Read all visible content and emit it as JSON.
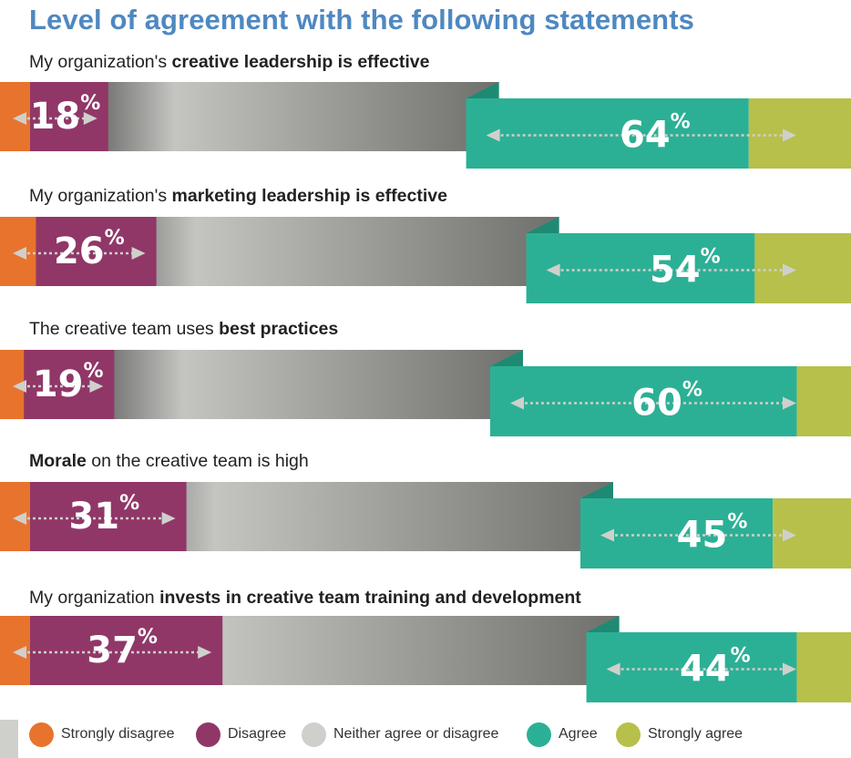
{
  "chart_data": {
    "type": "diverging_stacked_bar",
    "title": "Level of agreement with the following statements",
    "legend": {
      "position": "bottom",
      "entries": [
        {
          "key": "strongly_disagree",
          "label": "Strongly disagree",
          "color": "#e8732c"
        },
        {
          "key": "disagree",
          "label": "Disagree",
          "color": "#903768"
        },
        {
          "key": "neither",
          "label": "Neither agree or disagree",
          "color": "#cfd0cc"
        },
        {
          "key": "agree",
          "label": "Agree",
          "color": "#2cb095"
        },
        {
          "key": "strongly_agree",
          "label": "Strongly agree",
          "color": "#b6c04a"
        }
      ]
    },
    "statements": [
      {
        "parts": [
          {
            "text": "My organization's ",
            "bold": false
          },
          {
            "text": "creative leadership is effective",
            "bold": true
          }
        ],
        "disagree_total": 18,
        "agree_total": 64,
        "disagree_label": "18",
        "agree_label": "64",
        "strongly_disagree": 5,
        "strongly_agree": 17
      },
      {
        "parts": [
          {
            "text": "My organization's ",
            "bold": false
          },
          {
            "text": "marketing leadership is effective",
            "bold": true
          }
        ],
        "disagree_total": 26,
        "agree_total": 54,
        "disagree_label": "26",
        "agree_label": "54",
        "strongly_disagree": 6,
        "strongly_agree": 16
      },
      {
        "parts": [
          {
            "text": "The creative team uses ",
            "bold": false
          },
          {
            "text": "best practices",
            "bold": true
          }
        ],
        "disagree_total": 19,
        "agree_total": 60,
        "disagree_label": "19",
        "agree_label": "60",
        "strongly_disagree": 4,
        "strongly_agree": 9
      },
      {
        "parts": [
          {
            "text": "Morale",
            "bold": true
          },
          {
            "text": " on the creative team is high",
            "bold": false
          }
        ],
        "disagree_total": 31,
        "agree_total": 45,
        "disagree_label": "31",
        "agree_label": "45",
        "strongly_disagree": 5,
        "strongly_agree": 13
      },
      {
        "parts": [
          {
            "text": "My organization ",
            "bold": false
          },
          {
            "text": "invests in creative team training and development",
            "bold": true
          }
        ],
        "disagree_total": 37,
        "agree_total": 44,
        "disagree_label": "37",
        "agree_label": "44",
        "strongly_disagree": 5,
        "strongly_agree": 9
      }
    ],
    "percent_symbol": "%"
  }
}
